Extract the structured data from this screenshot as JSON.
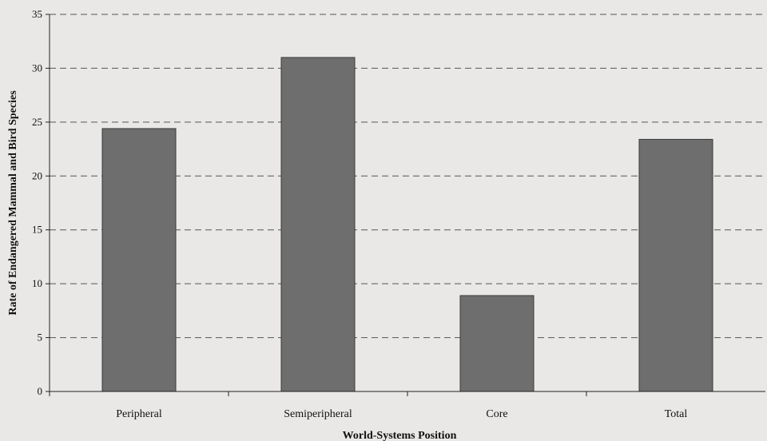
{
  "chart_data": {
    "type": "bar",
    "title": "",
    "xlabel": "World-Systems Position",
    "ylabel": "Rate of Endangered Mammal and Bird Species",
    "categories": [
      "Peripheral",
      "Semiperipheral",
      "Core",
      "Total"
    ],
    "values": [
      24.4,
      31.0,
      8.9,
      23.4
    ],
    "ylim": [
      0,
      35
    ],
    "yticks": [
      0,
      5,
      10,
      15,
      20,
      25,
      30,
      35
    ],
    "grid": "horizontal dashed",
    "bar_color": "#6e6e6e",
    "bar_edge_color": "#3a3a3a",
    "gridline_color": "#555555",
    "legend": "none"
  }
}
